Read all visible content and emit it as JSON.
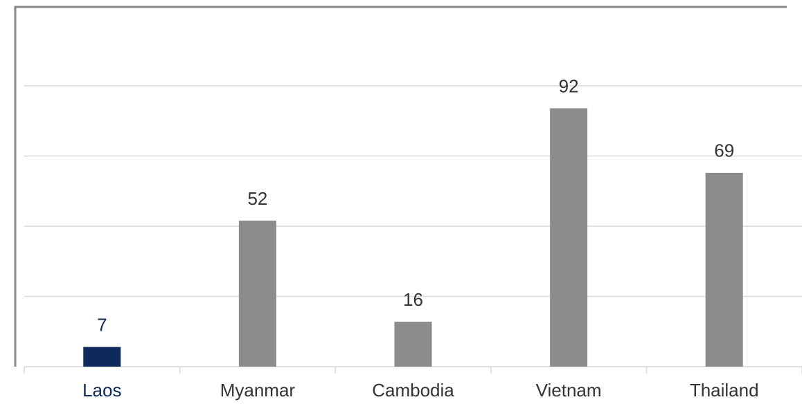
{
  "chart_data": {
    "type": "bar",
    "categories": [
      "Laos",
      "Myanmar",
      "Cambodia",
      "Vietnam",
      "Thailand"
    ],
    "values": [
      7,
      52,
      16,
      92,
      69
    ],
    "colors": [
      "#0d2a5a",
      "#8c8c8c",
      "#8c8c8c",
      "#8c8c8c",
      "#8c8c8c"
    ],
    "ylim": [
      0,
      100
    ],
    "yticks": [
      0,
      25,
      50,
      75,
      100
    ],
    "grid": true
  }
}
